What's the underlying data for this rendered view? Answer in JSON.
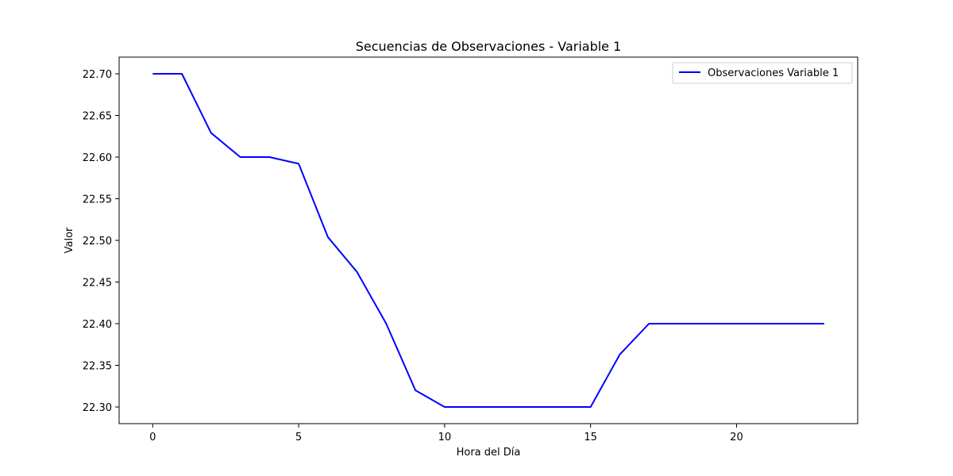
{
  "chart_data": {
    "type": "line",
    "title": "Secuencias de Observaciones - Variable 1",
    "xlabel": "Hora del Día",
    "ylabel": "Valor",
    "xlim": [
      -1.15,
      24.15
    ],
    "ylim": [
      22.28,
      22.72
    ],
    "xticks": [
      0,
      5,
      10,
      15,
      20
    ],
    "yticks": [
      22.3,
      22.35,
      22.4,
      22.45,
      22.5,
      22.55,
      22.6,
      22.65,
      22.7
    ],
    "grid": false,
    "legend_position": "upper right",
    "series": [
      {
        "name": "Observaciones Variable 1",
        "color": "#0000ff",
        "x": [
          0,
          1,
          2,
          3,
          4,
          5,
          6,
          7,
          8,
          9,
          10,
          11,
          12,
          13,
          14,
          15,
          16,
          17,
          18,
          19,
          20,
          21,
          22,
          23
        ],
        "y": [
          22.7,
          22.7,
          22.629,
          22.6,
          22.6,
          22.592,
          22.504,
          22.462,
          22.4,
          22.32,
          22.3,
          22.3,
          22.3,
          22.3,
          22.3,
          22.3,
          22.363,
          22.4,
          22.4,
          22.4,
          22.4,
          22.4,
          22.4,
          22.4
        ]
      }
    ]
  }
}
